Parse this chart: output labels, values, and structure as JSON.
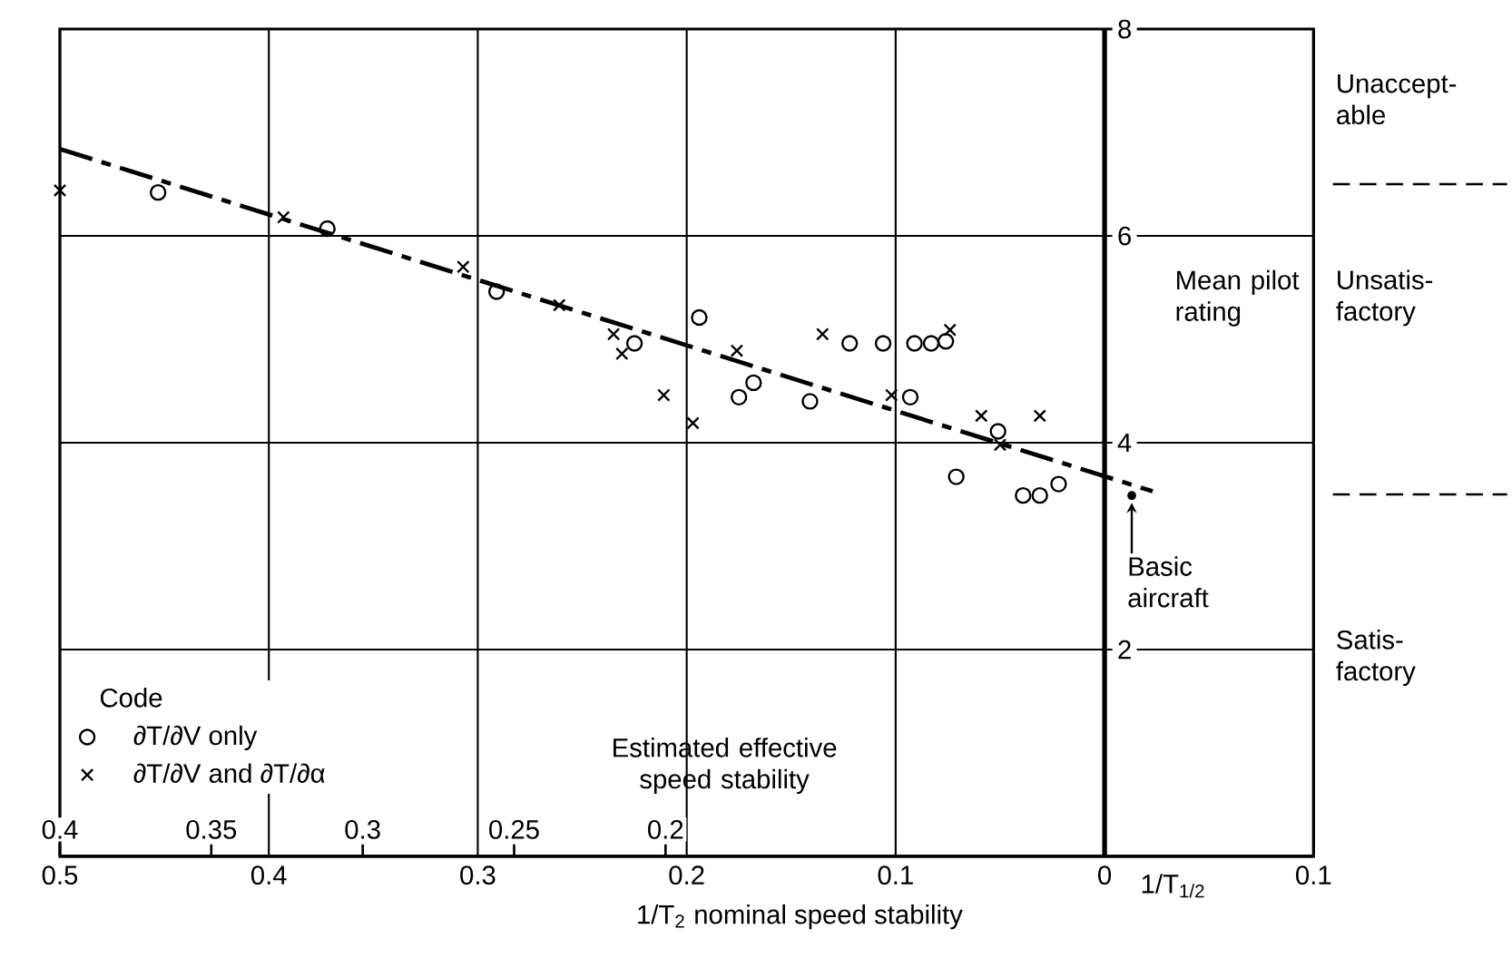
{
  "chart_data": {
    "type": "scatter",
    "xlabel": "1/T$_{2}$ nominal speed stability",
    "ylabel": "Mean pilot rating",
    "x2label": "Estimated effective speed stability",
    "legend_title": "Code",
    "xlim": [
      0.5,
      -0.1
    ],
    "xticks": [
      0.5,
      0.4,
      0.3,
      0.2,
      0.1,
      0,
      {
        "value": -0.1,
        "label": "0.1"
      }
    ],
    "x2lim": [
      0.4,
      -0.014
    ],
    "x2ticks": [
      0.4,
      0.35,
      0.3,
      0.25,
      0.2
    ],
    "ylim": [
      0,
      8
    ],
    "yticks": [
      2,
      4,
      6,
      8
    ],
    "grid": true,
    "legend": "bottom left",
    "series": [
      {
        "name": "∂T/∂V only",
        "marker": "circle",
        "color": "#000000",
        "x": [
          0.453,
          0.372,
          0.291,
          0.225,
          0.194,
          0.175,
          0.168,
          0.141,
          0.122,
          0.106,
          0.091,
          0.083,
          0.076,
          0.093,
          0.051,
          0.071,
          0.039,
          0.031,
          0.022
        ],
        "values": [
          6.42,
          6.07,
          5.46,
          4.96,
          5.21,
          4.44,
          4.58,
          4.4,
          4.96,
          4.96,
          4.96,
          4.96,
          4.98,
          4.44,
          4.11,
          3.67,
          3.49,
          3.49,
          3.6
        ]
      },
      {
        "name": "∂T/∂V and ∂T/∂α",
        "marker": "cross",
        "color": "#000000",
        "x": [
          0.5,
          0.393,
          0.307,
          0.261,
          0.235,
          0.231,
          0.211,
          0.197,
          0.176,
          0.135,
          0.102,
          0.074,
          0.059,
          0.05,
          0.031
        ],
        "values": [
          6.44,
          6.18,
          5.7,
          5.33,
          5.05,
          4.86,
          4.46,
          4.19,
          4.89,
          5.05,
          4.46,
          5.09,
          4.26,
          3.98,
          4.26
        ]
      },
      {
        "type": "line",
        "marker": "none",
        "line_style": "dashed",
        "color": "#000000",
        "x": [
          0.5,
          -0.023
        ],
        "values": [
          6.84,
          3.53
        ]
      }
    ],
    "annotations": [
      {
        "text": "Basic aircraft",
        "x": -0.013,
        "y": 3.49
      },
      "1/T$_{1/2}$",
      "Unaccept-able",
      "Unsatis-factory",
      "Satis-factory"
    ]
  }
}
